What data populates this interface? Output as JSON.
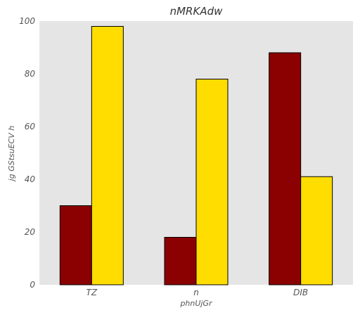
{
  "chart_data": {
    "type": "bar",
    "title": "nMRKAdw",
    "xlabel": "phnUjGr",
    "ylabel": "jg GStsuECV h",
    "categories": [
      "TZ",
      "n",
      "DIB"
    ],
    "series": [
      {
        "values": [
          30,
          18,
          88
        ],
        "color": "#8b0000"
      },
      {
        "values": [
          98,
          78,
          41
        ],
        "color": "#ffdd00"
      }
    ],
    "ylim": [
      0,
      100
    ],
    "yticks": [
      0,
      20,
      40,
      60,
      80,
      100
    ],
    "grid": false,
    "plot_background": "#e5e5e5"
  }
}
